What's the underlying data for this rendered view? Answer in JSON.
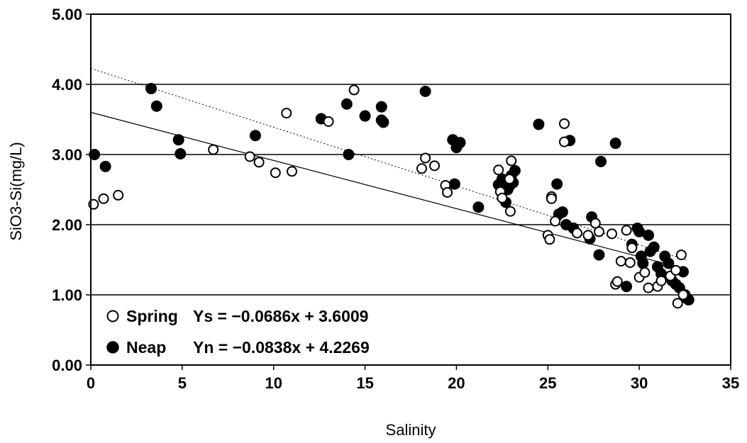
{
  "chart_data": {
    "type": "scatter",
    "xlabel": "Salinity",
    "ylabel": "SiO3-Si(mg/L)",
    "xlim": [
      0,
      35
    ],
    "ylim": [
      0,
      5
    ],
    "x_ticks": [
      "0",
      "5",
      "10",
      "15",
      "20",
      "25",
      "30",
      "35"
    ],
    "y_ticks": [
      "0.00",
      "1.00",
      "2.00",
      "3.00",
      "4.00",
      "5.00"
    ],
    "grid": "horizontal",
    "legend_placement": "bottom-left",
    "series": [
      {
        "name": "Spring",
        "marker": "open-circle",
        "equation_label": "Ys = −0.0686x + 3.6009",
        "trend": {
          "slope": -0.0686,
          "intercept": 3.6009,
          "style": "solid"
        },
        "points": [
          [
            0.15,
            2.29
          ],
          [
            0.7,
            2.37
          ],
          [
            1.5,
            2.42
          ],
          [
            6.7,
            3.07
          ],
          [
            8.7,
            2.97
          ],
          [
            9.2,
            2.89
          ],
          [
            10.1,
            2.74
          ],
          [
            10.7,
            3.59
          ],
          [
            11.0,
            2.76
          ],
          [
            13.0,
            3.47
          ],
          [
            14.4,
            3.92
          ],
          [
            18.1,
            2.8
          ],
          [
            18.3,
            2.95
          ],
          [
            18.8,
            2.84
          ],
          [
            19.4,
            2.56
          ],
          [
            19.5,
            2.46
          ],
          [
            22.3,
            2.78
          ],
          [
            22.4,
            2.47
          ],
          [
            22.5,
            2.38
          ],
          [
            22.9,
            2.65
          ],
          [
            23.0,
            2.91
          ],
          [
            22.95,
            2.19
          ],
          [
            25.0,
            1.85
          ],
          [
            25.1,
            1.79
          ],
          [
            25.2,
            2.4
          ],
          [
            25.2,
            2.37
          ],
          [
            25.4,
            2.05
          ],
          [
            25.9,
            3.44
          ],
          [
            25.9,
            3.18
          ],
          [
            26.6,
            1.88
          ],
          [
            27.2,
            1.85
          ],
          [
            27.6,
            2.02
          ],
          [
            27.8,
            1.9
          ],
          [
            28.5,
            1.87
          ],
          [
            28.7,
            1.15
          ],
          [
            28.8,
            1.19
          ],
          [
            29.0,
            1.48
          ],
          [
            29.3,
            1.92
          ],
          [
            29.5,
            1.46
          ],
          [
            29.6,
            1.67
          ],
          [
            30.0,
            1.25
          ],
          [
            30.3,
            1.32
          ],
          [
            30.5,
            1.1
          ],
          [
            31.0,
            1.12
          ],
          [
            31.2,
            1.2
          ],
          [
            31.7,
            1.27
          ],
          [
            32.0,
            1.35
          ],
          [
            32.1,
            0.88
          ],
          [
            32.3,
            1.57
          ],
          [
            32.4,
            1.0
          ]
        ]
      },
      {
        "name": "Neap",
        "marker": "filled-circle",
        "equation_label": "Yn = −0.0838x + 4.2269",
        "trend": {
          "slope": -0.0838,
          "intercept": 4.2269,
          "style": "dotted"
        },
        "points": [
          [
            0.2,
            3.0
          ],
          [
            0.8,
            2.83
          ],
          [
            3.3,
            3.94
          ],
          [
            3.6,
            3.69
          ],
          [
            4.8,
            3.21
          ],
          [
            4.9,
            3.01
          ],
          [
            9.0,
            3.27
          ],
          [
            12.6,
            3.51
          ],
          [
            14.0,
            3.72
          ],
          [
            14.1,
            3.0
          ],
          [
            15.0,
            3.55
          ],
          [
            15.9,
            3.68
          ],
          [
            15.9,
            3.49
          ],
          [
            16.0,
            3.46
          ],
          [
            18.3,
            3.9
          ],
          [
            19.8,
            3.21
          ],
          [
            19.9,
            2.58
          ],
          [
            20.0,
            3.1
          ],
          [
            20.2,
            3.17
          ],
          [
            21.2,
            2.25
          ],
          [
            22.3,
            2.57
          ],
          [
            22.5,
            2.65
          ],
          [
            22.7,
            2.32
          ],
          [
            22.8,
            2.5
          ],
          [
            22.9,
            2.55
          ],
          [
            23.0,
            2.7
          ],
          [
            23.1,
            2.6
          ],
          [
            23.2,
            2.77
          ],
          [
            24.5,
            3.43
          ],
          [
            25.5,
            2.58
          ],
          [
            25.6,
            2.15
          ],
          [
            25.8,
            2.18
          ],
          [
            26.0,
            2.0
          ],
          [
            26.2,
            3.2
          ],
          [
            26.4,
            1.95
          ],
          [
            27.3,
            1.8
          ],
          [
            27.4,
            2.11
          ],
          [
            27.8,
            1.57
          ],
          [
            27.9,
            2.9
          ],
          [
            28.7,
            3.16
          ],
          [
            29.3,
            1.12
          ],
          [
            29.6,
            1.72
          ],
          [
            29.9,
            1.95
          ],
          [
            30.0,
            1.9
          ],
          [
            30.1,
            1.55
          ],
          [
            30.2,
            1.45
          ],
          [
            30.5,
            1.85
          ],
          [
            30.6,
            1.62
          ],
          [
            30.8,
            1.68
          ],
          [
            31.0,
            1.4
          ],
          [
            31.2,
            1.3
          ],
          [
            31.4,
            1.55
          ],
          [
            31.6,
            1.45
          ],
          [
            31.8,
            1.2
          ],
          [
            32.0,
            1.15
          ],
          [
            32.2,
            1.1
          ],
          [
            32.4,
            1.33
          ],
          [
            32.5,
            1.0
          ],
          [
            32.6,
            0.95
          ],
          [
            32.7,
            0.93
          ]
        ]
      }
    ]
  }
}
